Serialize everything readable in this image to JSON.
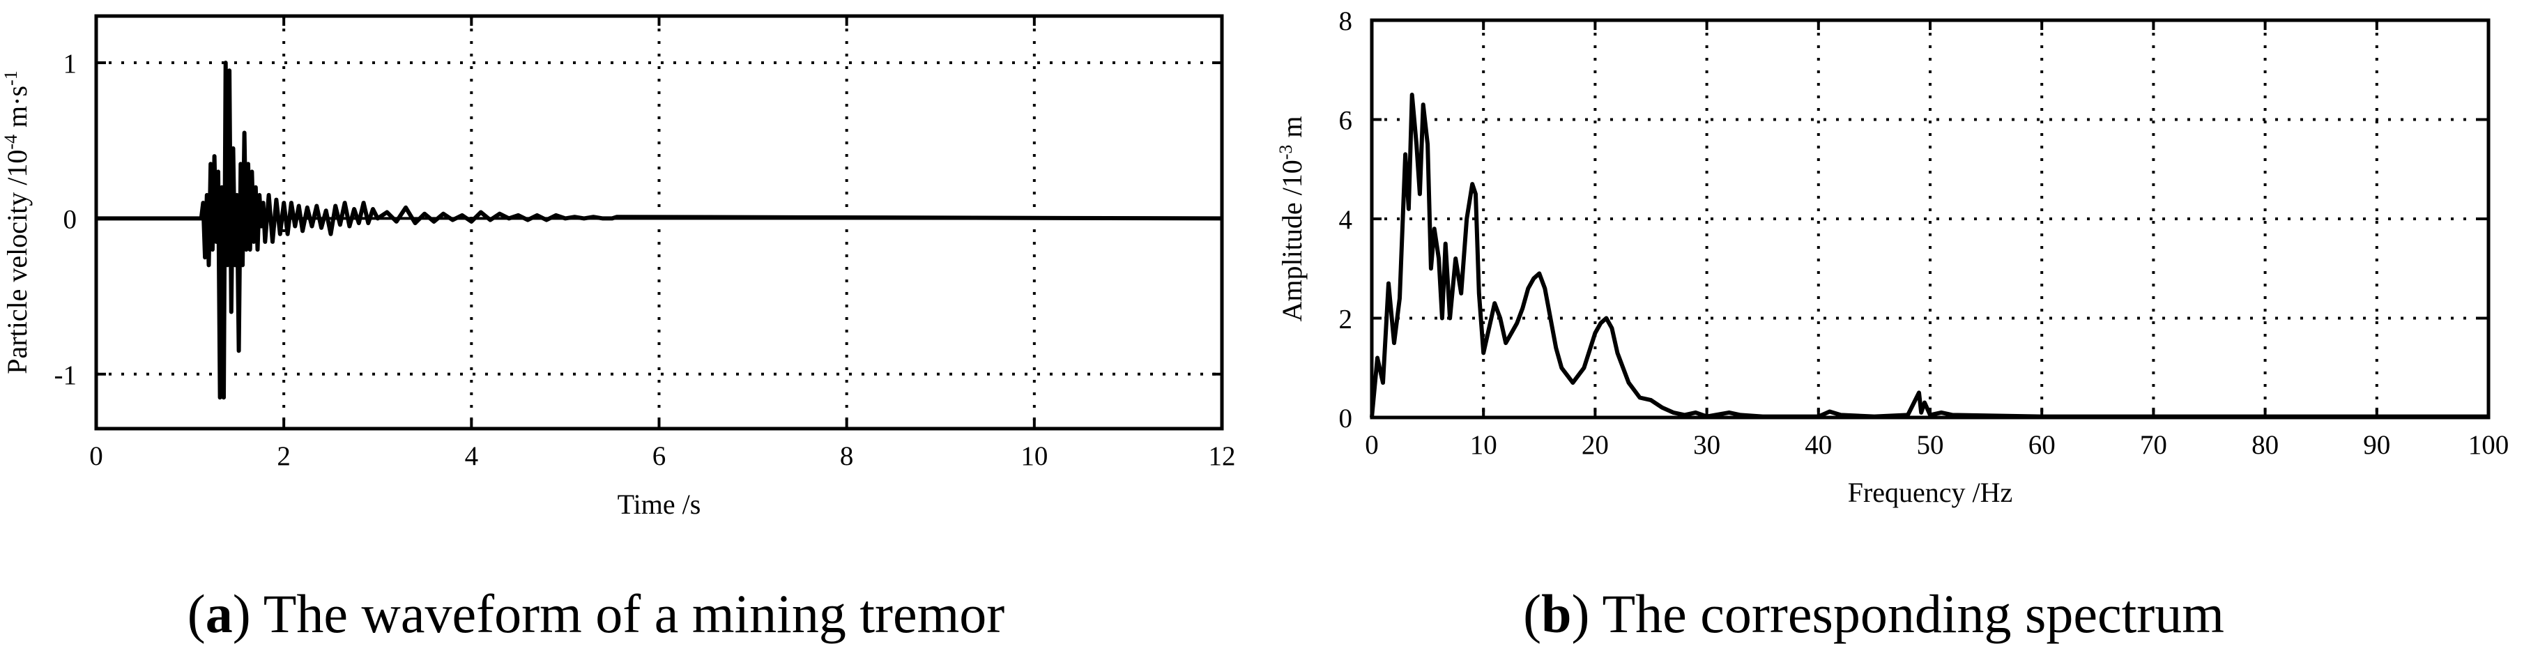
{
  "chart_data": [
    {
      "type": "line",
      "caption": {
        "letter": "a",
        "text": "The waveform of a mining tremor"
      },
      "xlabel": "Time /s",
      "ylabel": {
        "base": "Particle velocity /10",
        "exp1": "-4",
        "mid": " m·s",
        "exp2": "-1"
      },
      "xlim": [
        0,
        12
      ],
      "ylim": [
        -1.35,
        1.3
      ],
      "xticks": [
        "0",
        "2",
        "4",
        "6",
        "8",
        "10",
        "12"
      ],
      "yticks": [
        "-1",
        "0",
        "1"
      ],
      "grid": true,
      "series": [
        {
          "x": [
            0,
            1.12,
            1.14,
            1.16,
            1.18,
            1.2,
            1.22,
            1.24,
            1.26,
            1.28,
            1.3,
            1.32,
            1.34,
            1.36,
            1.38,
            1.4,
            1.42,
            1.44,
            1.46,
            1.48,
            1.5,
            1.52,
            1.54,
            1.56,
            1.58,
            1.6,
            1.62,
            1.64,
            1.66,
            1.68,
            1.7,
            1.72,
            1.74,
            1.76,
            1.78,
            1.8,
            1.84,
            1.88,
            1.92,
            1.96,
            2.0,
            2.04,
            2.08,
            2.12,
            2.16,
            2.2,
            2.25,
            2.3,
            2.35,
            2.4,
            2.45,
            2.5,
            2.55,
            2.6,
            2.65,
            2.7,
            2.75,
            2.8,
            2.85,
            2.9,
            2.95,
            3.0,
            3.1,
            3.2,
            3.3,
            3.4,
            3.5,
            3.6,
            3.7,
            3.8,
            3.9,
            4.0,
            4.1,
            4.2,
            4.3,
            4.4,
            4.5,
            4.6,
            4.7,
            4.8,
            4.9,
            5.0,
            5.1,
            5.2,
            5.3,
            5.4,
            5.5,
            5.55,
            12
          ],
          "y": [
            0,
            0,
            0.1,
            -0.25,
            0.15,
            -0.3,
            0.35,
            -0.2,
            0.4,
            -0.15,
            0.3,
            -1.15,
            0.2,
            -1.15,
            1.0,
            -0.3,
            0.95,
            -0.6,
            0.45,
            -0.3,
            0.15,
            -0.85,
            0.35,
            -0.3,
            0.55,
            -0.2,
            0.35,
            -0.2,
            0.3,
            -0.15,
            0.2,
            -0.2,
            0.15,
            -0.05,
            0.1,
            -0.15,
            0.15,
            -0.15,
            0.12,
            -0.1,
            0.1,
            -0.1,
            0.1,
            -0.05,
            0.08,
            -0.08,
            0.07,
            -0.05,
            0.08,
            -0.06,
            0.05,
            -0.1,
            0.08,
            -0.04,
            0.1,
            -0.05,
            0.06,
            -0.03,
            0.1,
            -0.03,
            0.06,
            0.0,
            0.04,
            -0.02,
            0.07,
            -0.03,
            0.03,
            -0.02,
            0.03,
            -0.01,
            0.02,
            -0.02,
            0.04,
            -0.01,
            0.03,
            0.0,
            0.02,
            -0.01,
            0.02,
            -0.01,
            0.02,
            0.0,
            0.01,
            0.0,
            0.01,
            0.0,
            0.0,
            0.01,
            0
          ]
        }
      ]
    },
    {
      "type": "line",
      "caption": {
        "letter": "b",
        "text": "The corresponding spectrum"
      },
      "xlabel": "Frequency /Hz",
      "ylabel": {
        "base": "Amplitude /10",
        "exp1": "-3",
        "mid": " m",
        "exp2": ""
      },
      "xlim": [
        0,
        100
      ],
      "ylim": [
        0,
        8
      ],
      "xticks": [
        "0",
        "10",
        "20",
        "30",
        "40",
        "50",
        "60",
        "70",
        "80",
        "90",
        "100"
      ],
      "yticks": [
        "0",
        "2",
        "4",
        "6",
        "8"
      ],
      "grid": true,
      "series": [
        {
          "x": [
            0,
            0.5,
            1,
            1.5,
            2,
            2.5,
            3,
            3.3,
            3.6,
            4,
            4.3,
            4.6,
            5,
            5.3,
            5.6,
            6,
            6.3,
            6.6,
            7,
            7.5,
            8,
            8.5,
            9,
            9.3,
            9.6,
            10,
            10.5,
            11,
            11.5,
            12,
            12.5,
            13,
            13.5,
            14,
            14.5,
            15,
            15.5,
            16,
            16.5,
            17,
            18,
            19,
            20,
            20.5,
            21,
            21.5,
            22,
            23,
            24,
            25,
            26,
            27,
            28,
            29,
            30,
            32,
            33,
            35,
            40,
            41,
            42,
            45,
            48,
            49,
            49.2,
            49.5,
            50,
            51,
            52,
            60,
            70,
            80,
            90,
            100
          ],
          "y": [
            0,
            1.2,
            0.7,
            2.7,
            1.5,
            2.4,
            5.3,
            4.2,
            6.5,
            5.5,
            4.5,
            6.3,
            5.5,
            3.0,
            3.8,
            3.2,
            2.0,
            3.5,
            2.0,
            3.2,
            2.5,
            4.0,
            4.7,
            4.5,
            2.5,
            1.3,
            1.8,
            2.3,
            2.0,
            1.5,
            1.7,
            1.9,
            2.2,
            2.6,
            2.8,
            2.9,
            2.6,
            2.0,
            1.4,
            1.0,
            0.7,
            1.0,
            1.7,
            1.9,
            2.0,
            1.8,
            1.3,
            0.7,
            0.4,
            0.35,
            0.2,
            0.1,
            0.05,
            0.1,
            0.02,
            0.1,
            0.05,
            0.02,
            0.02,
            0.12,
            0.05,
            0.02,
            0.05,
            0.5,
            0.1,
            0.3,
            0.05,
            0.1,
            0.05,
            0.02,
            0.02,
            0.02,
            0.02,
            0.02
          ]
        }
      ]
    }
  ]
}
